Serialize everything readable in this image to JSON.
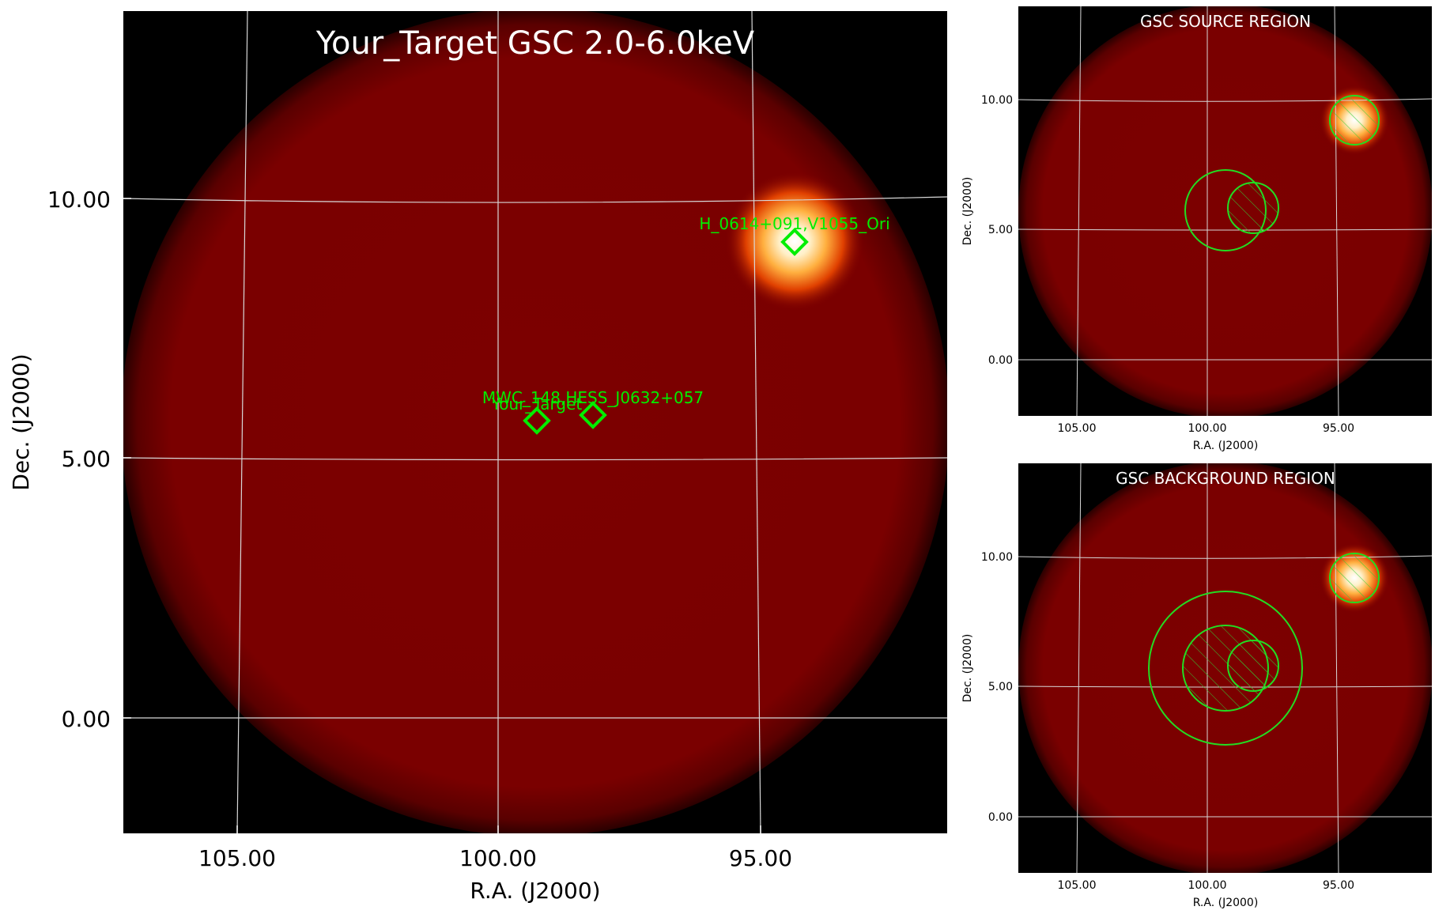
{
  "main": {
    "title": "Your_Target GSC 2.0-6.0keV",
    "xlabel": "R.A. (J2000)",
    "ylabel": "Dec. (J2000)",
    "xticks": [
      "105.00",
      "100.00",
      "95.00"
    ],
    "yticks": [
      "10.00",
      "5.00",
      "0.00"
    ],
    "sources": [
      {
        "name": "H_0614+091,V1055_Ori"
      },
      {
        "name": "MWC_148,HESS_J0632+057"
      },
      {
        "name": "Your_Target"
      }
    ]
  },
  "source_panel": {
    "title": "GSC SOURCE REGION",
    "xlabel": "R.A. (J2000)",
    "ylabel": "Dec. (J2000)",
    "xticks": [
      "105.00",
      "100.00",
      "95.00"
    ],
    "yticks": [
      "10.00",
      "5.00",
      "0.00"
    ]
  },
  "background_panel": {
    "title": "GSC BACKGROUND REGION",
    "xlabel": "R.A. (J2000)",
    "ylabel": "Dec. (J2000)",
    "xticks": [
      "105.00",
      "100.00",
      "95.00"
    ],
    "yticks": [
      "10.00",
      "5.00",
      "0.00"
    ]
  },
  "colors": {
    "field_red": "#7a0000",
    "region_green": "#22dd22",
    "marker_green": "#00ee00",
    "grid": "#dddddd",
    "background": "#000000"
  }
}
